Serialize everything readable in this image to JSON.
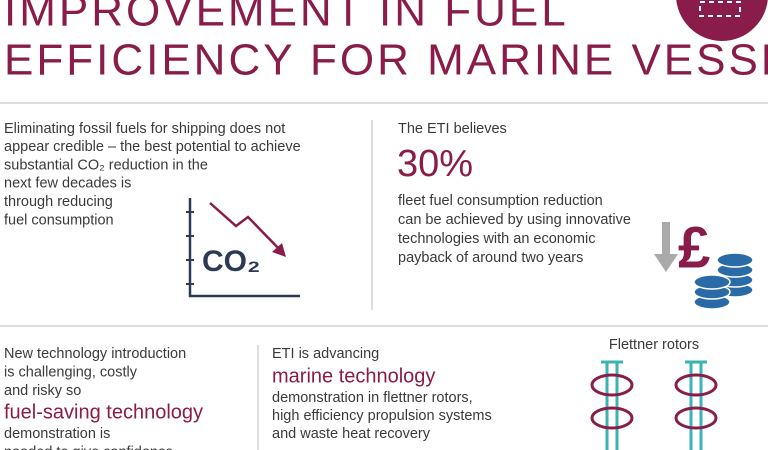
{
  "header": {
    "title_lines": [
      "IMPROVEMENT IN FUEL",
      "EFFICIENCY FOR MARINE VESSELS"
    ]
  },
  "panels": [
    {
      "lines": [
        "Eliminating fossil fuels for shipping does not",
        "appear credible – the best potential to achieve",
        "substantial CO₂ reduction in the",
        "next few decades is",
        "through reducing",
        "fuel consumption"
      ],
      "icon_label": "CO₂"
    },
    {
      "intro": "The ETI believes",
      "highlight": "30%",
      "lines": [
        "fleet fuel consumption reduction",
        "can be achieved by using innovative",
        "technologies with an economic",
        "payback of around two years"
      ],
      "icon_label": "£"
    },
    {
      "lines": [
        "New technology introduction",
        "is challenging, costly",
        "and risky so"
      ],
      "highlight": "fuel-saving technology",
      "after": [
        "demonstration is",
        "needed to give confidence"
      ]
    },
    {
      "intro": "ETI is advancing",
      "highlight": "marine technology",
      "lines": [
        "demonstration in flettner rotors,",
        "high efficiency propulsion systems",
        "and waste heat recovery"
      ]
    },
    {
      "caption": "Flettner rotors"
    }
  ]
}
